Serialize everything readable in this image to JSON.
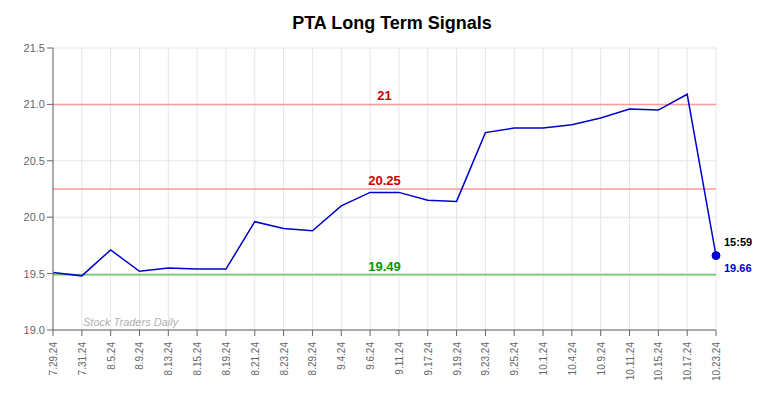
{
  "chart_data": {
    "type": "line",
    "title": "PTA Long Term Signals",
    "categories": [
      "7.29.24",
      "7.31.24",
      "8.5.24",
      "8.9.24",
      "8.13.24",
      "8.15.24",
      "8.19.24",
      "8.21.24",
      "8.23.24",
      "8.29.24",
      "9.4.24",
      "9.6.24",
      "9.11.24",
      "9.17.24",
      "9.19.24",
      "9.23.24",
      "9.25.24",
      "10.1.24",
      "10.4.24",
      "10.9.24",
      "10.11.24",
      "10.15.24",
      "10.17.24",
      "10.23.24"
    ],
    "values": [
      19.51,
      19.48,
      19.71,
      19.52,
      19.55,
      19.54,
      19.54,
      19.96,
      19.9,
      19.88,
      20.1,
      20.22,
      20.22,
      20.15,
      20.14,
      20.75,
      20.79,
      20.79,
      20.82,
      20.88,
      20.96,
      20.95,
      21.09,
      19.66
    ],
    "color": "#0000cc",
    "ylim": [
      19.0,
      21.5
    ],
    "yticks": [
      {
        "value": 19.0,
        "label": "19.0"
      },
      19.5,
      {
        "value": 20.0,
        "label": "20.0"
      },
      20.5,
      {
        "value": 21.0,
        "label": "21.0"
      },
      21.5
    ],
    "grid": true,
    "reference_lines": [
      {
        "value": 19.49,
        "label": "19.49",
        "color": "#66cc66",
        "label_color": "#009900"
      },
      {
        "value": 21.0,
        "label": "21",
        "color": "#ff9999",
        "label_color": "#cc0000"
      },
      {
        "value": 20.25,
        "label": "20.25",
        "color": "#ff9999",
        "label_color": "#cc0000"
      }
    ],
    "annotations": [
      {
        "text": "Stock Traders Daily",
        "color": "#b0b0b0"
      },
      {
        "text": "15:59",
        "color": "#000000"
      },
      {
        "text": "19.66",
        "color": "#0000cc"
      }
    ]
  }
}
